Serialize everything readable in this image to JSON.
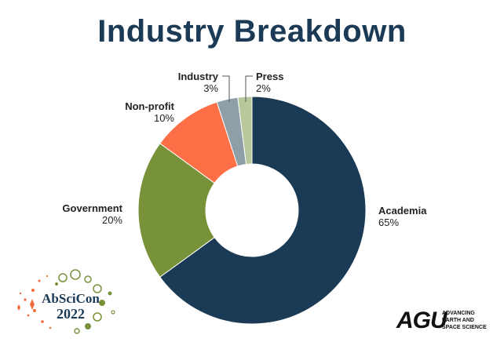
{
  "chart_data": {
    "type": "pie",
    "donut": true,
    "title": "Industry Breakdown",
    "legend": "none",
    "categories": [
      "Academia",
      "Government",
      "Non-profit",
      "Industry",
      "Press"
    ],
    "values": [
      65,
      20,
      10,
      3,
      2
    ],
    "value_labels": [
      "65%",
      "20%",
      "10%",
      "3%",
      "2%"
    ],
    "colors": [
      "#1b3a55",
      "#78923a",
      "#ff6f47",
      "#8f9fa8",
      "#b9c89a"
    ]
  },
  "logos": {
    "event_text_top": "AbSciCon",
    "event_text_year": "2022",
    "agu_mark": "AGU",
    "agu_tagline": [
      "ADVANCING",
      "EARTH AND",
      "SPACE SCIENCE"
    ]
  }
}
